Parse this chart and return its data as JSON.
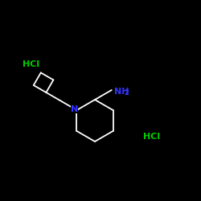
{
  "background_color": "#000000",
  "bond_color": "#ffffff",
  "N_color": "#3333ff",
  "NH2_color": "#3333ff",
  "HCl_color": "#00cc00",
  "N_label": "N",
  "NH2_label": "NH",
  "sub2_label": "2",
  "HCl_label": "HCl",
  "fig_size": [
    2.5,
    2.5
  ],
  "dpi": 100,
  "lw": 1.3,
  "N_fontsize": 8,
  "NH2_fontsize": 8,
  "sub2_fontsize": 6,
  "HCl_fontsize": 8
}
